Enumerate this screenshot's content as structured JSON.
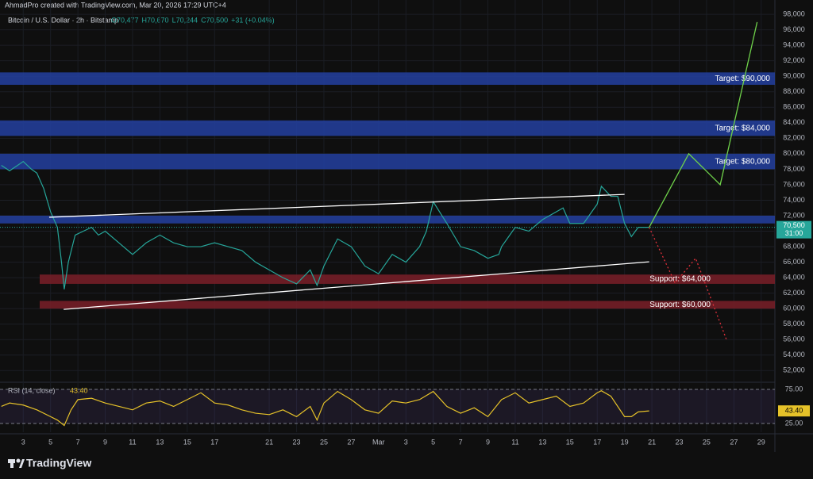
{
  "header": {
    "credit": "AhmadPro created with TradingView.com, Mar 20, 2026 17:29 UTC+4",
    "symbol": "Bitcoin / U.S. Dollar · 2h · Bitstamp",
    "ohlc": [
      "O70,477",
      "H70,670",
      "L70,244",
      "C70,500",
      "+31 (+0.04%)"
    ],
    "footer": "TradingView"
  },
  "chart_data": [
    {
      "type": "line",
      "color": "#26a69a",
      "x": [
        -1.6,
        -1,
        0,
        0.6,
        1,
        1.5,
        2,
        2.5,
        2.8,
        3,
        3.3,
        3.8,
        4.4,
        5,
        5.5,
        6,
        7,
        8,
        9,
        10,
        11,
        12,
        13,
        14,
        15,
        16,
        17,
        18,
        19,
        20,
        21,
        21.5,
        22,
        23,
        24,
        25,
        26,
        27,
        28,
        29,
        29.5,
        30,
        31,
        32,
        33,
        34,
        34.8,
        35,
        36,
        37,
        38,
        39,
        39.5,
        40,
        41,
        42,
        42.3,
        43,
        43.5,
        44,
        44.5,
        45,
        45.8
      ],
      "values": [
        78500,
        77800,
        79000,
        78000,
        77500,
        75500,
        72500,
        70500,
        66000,
        62500,
        66000,
        69500,
        70000,
        70500,
        69500,
        70000,
        68500,
        67000,
        68500,
        69500,
        68500,
        68000,
        68000,
        68500,
        68000,
        67500,
        66000,
        65000,
        64000,
        63200,
        65000,
        63000,
        65500,
        69000,
        68000,
        65500,
        64500,
        67000,
        66000,
        68000,
        70000,
        73800,
        71000,
        68000,
        67500,
        66500,
        67000,
        68000,
        70500,
        70000,
        71500,
        72500,
        73000,
        71000,
        71000,
        73500,
        75800,
        74500,
        74500,
        71000,
        69300,
        70500,
        70500
      ],
      "last_price": 70500,
      "last_price_label": "70,500",
      "countdown": "31:00",
      "xlim": [
        -1.7,
        55
      ],
      "ylim": [
        50700,
        99850
      ],
      "yticks": [
        {
          "value": 52000,
          "label": "52,000"
        },
        {
          "value": 54000,
          "label": "54,000"
        },
        {
          "value": 56000,
          "label": "56,000"
        },
        {
          "value": 58000,
          "label": "58,000"
        },
        {
          "value": 60000,
          "label": "60,000"
        },
        {
          "value": 62000,
          "label": "62,000"
        },
        {
          "value": 64000,
          "label": "64,000"
        },
        {
          "value": 66000,
          "label": "66,000"
        },
        {
          "value": 68000,
          "label": "68,000"
        },
        {
          "value": 70000,
          "label": "70,000"
        },
        {
          "value": 72000,
          "label": "72,000"
        },
        {
          "value": 74000,
          "label": "74,000"
        },
        {
          "value": 76000,
          "label": "76,000"
        },
        {
          "value": 78000,
          "label": "78,000"
        },
        {
          "value": 80000,
          "label": "80,000"
        },
        {
          "value": 82000,
          "label": "82,000"
        },
        {
          "value": 84000,
          "label": "84,000"
        },
        {
          "value": 86000,
          "label": "86,000"
        },
        {
          "value": 88000,
          "label": "88,000"
        },
        {
          "value": 90000,
          "label": "90,000"
        },
        {
          "value": 92000,
          "label": "92,000"
        },
        {
          "value": 94000,
          "label": "94,000"
        },
        {
          "value": 96000,
          "label": "96,000"
        },
        {
          "value": 98000,
          "label": "98,000"
        }
      ],
      "xticks": [
        {
          "value": 0,
          "label": "3"
        },
        {
          "value": 2,
          "label": "5"
        },
        {
          "value": 4,
          "label": "7"
        },
        {
          "value": 6,
          "label": "9"
        },
        {
          "value": 8,
          "label": "11"
        },
        {
          "value": 10,
          "label": "13"
        },
        {
          "value": 12,
          "label": "15"
        },
        {
          "value": 14,
          "label": "17"
        },
        {
          "value": 18,
          "label": "21"
        },
        {
          "value": 20,
          "label": "23"
        },
        {
          "value": 22,
          "label": "25"
        },
        {
          "value": 24,
          "label": "27"
        },
        {
          "value": 26,
          "label": "Mar"
        },
        {
          "value": 28,
          "label": "3"
        },
        {
          "value": 30,
          "label": "5"
        },
        {
          "value": 32,
          "label": "7"
        },
        {
          "value": 34,
          "label": "9"
        },
        {
          "value": 36,
          "label": "11"
        },
        {
          "value": 38,
          "label": "13"
        },
        {
          "value": 40,
          "label": "15"
        },
        {
          "value": 42,
          "label": "17"
        },
        {
          "value": 44,
          "label": "19"
        },
        {
          "value": 46,
          "label": "21"
        },
        {
          "value": 48,
          "label": "23"
        },
        {
          "value": 50,
          "label": "25"
        },
        {
          "value": 52,
          "label": "27"
        },
        {
          "value": 54,
          "label": "29"
        }
      ],
      "zones": [
        {
          "from": 88900,
          "to": 90500,
          "color": "#2340a0",
          "label": "Target: $90,000"
        },
        {
          "from": 82300,
          "to": 84300,
          "color": "#2340a0",
          "label": "Target: $84,000"
        },
        {
          "from": 78000,
          "to": 80000,
          "color": "#2340a0",
          "label": "Target: $80,000"
        },
        {
          "from": 71000,
          "to": 72000,
          "color": "#2340a0"
        },
        {
          "from": 63200,
          "to": 64400,
          "color": "#7a1f28",
          "label": "Support: $64,000"
        },
        {
          "from": 60000,
          "to": 61000,
          "color": "#7a1f28",
          "label": "Support: $60,000"
        }
      ],
      "lines": [
        {
          "x": [
            1.9,
            44
          ],
          "values": [
            71800,
            74750
          ],
          "color": "#ffffff"
        },
        {
          "x": [
            2.96,
            45.8
          ],
          "values": [
            59900,
            66050
          ],
          "color": "#ffffff"
        },
        {
          "x": [
            45.8,
            48.7,
            51,
            53.7
          ],
          "values": [
            70500,
            80000,
            76000,
            97000
          ],
          "color": "#6fd24a"
        },
        {
          "x": [
            45.8,
            47.7,
            49.2,
            51.5
          ],
          "values": [
            70500,
            63300,
            66500,
            55800
          ],
          "color": "#e0303a",
          "dashed": true
        }
      ]
    },
    {
      "type": "line",
      "title": "RSI (14, close)",
      "color": "#e6c229",
      "x": [
        -1.6,
        -1,
        0,
        1,
        2,
        2.5,
        3,
        3.5,
        4,
        5,
        6,
        7,
        8,
        9,
        10,
        11,
        12,
        13,
        14,
        15,
        16,
        17,
        18,
        19,
        20,
        21,
        21.5,
        22,
        23,
        24,
        25,
        26,
        27,
        28,
        29,
        30,
        31,
        32,
        33,
        34,
        35,
        36,
        37,
        38,
        39,
        40,
        41,
        42,
        42.3,
        43,
        44,
        44.5,
        45,
        45.8
      ],
      "values": [
        50,
        55,
        52,
        45,
        35,
        30,
        22,
        45,
        60,
        62,
        55,
        50,
        45,
        55,
        58,
        50,
        60,
        70,
        55,
        52,
        45,
        40,
        38,
        45,
        35,
        50,
        30,
        55,
        72,
        60,
        45,
        40,
        58,
        55,
        60,
        72,
        50,
        40,
        48,
        35,
        60,
        70,
        55,
        60,
        65,
        50,
        55,
        70,
        73,
        65,
        35,
        35,
        42,
        43.4
      ],
      "last_value": 43.4,
      "last_value_label": "43.40",
      "xlim": [
        -1.7,
        55
      ],
      "ylim": [
        12.2,
        83.1
      ],
      "yticks": [
        {
          "value": 75,
          "label": "75.00"
        },
        {
          "value": 25,
          "label": "25.00"
        }
      ]
    }
  ]
}
